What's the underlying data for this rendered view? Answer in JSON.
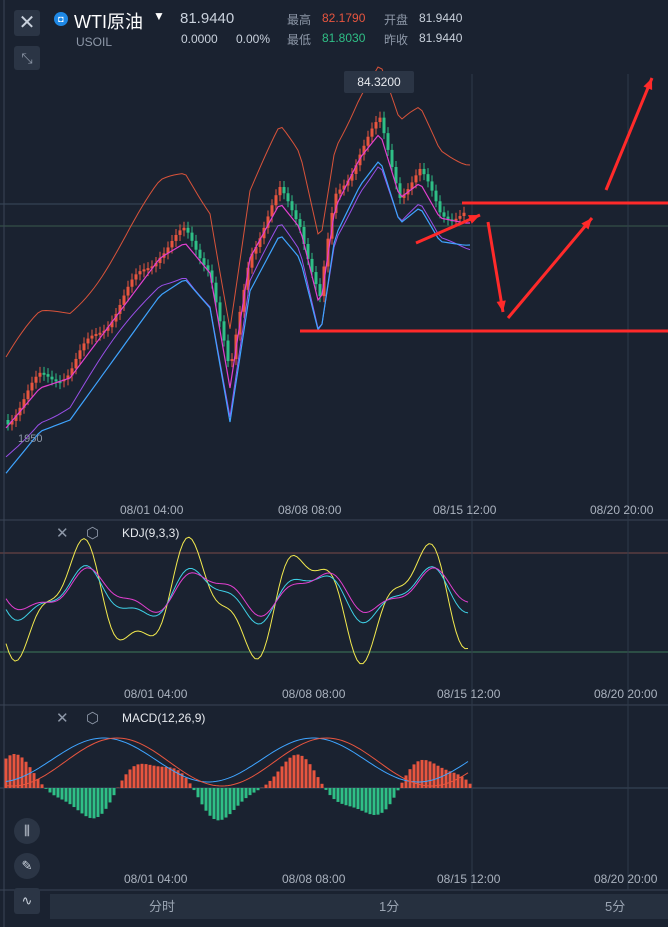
{
  "header": {
    "close_icon": "close-icon",
    "shrink_icon": "collapse-arrows-icon",
    "title": "WTI原油",
    "symbol": "USOIL",
    "price": "81.9440",
    "change": "0.0000",
    "change_pct": "0.00%",
    "high_label": "最高",
    "high_value": "82.1790",
    "low_label": "最低",
    "low_value": "81.8030",
    "open_label": "开盘",
    "open_value": "81.9440",
    "prev_label": "昨收",
    "prev_value": "81.9440"
  },
  "main_chart": {
    "high_marker": "84.3200",
    "y_axis_label": "1950",
    "x_labels": [
      "08/01 04:00",
      "08/08 08:00",
      "08/15 12:00",
      "08/20 20:00"
    ]
  },
  "kdj_panel": {
    "label": "KDJ(9,3,3)",
    "x_labels": [
      "08/01 04:00",
      "08/08 08:00",
      "08/15 12:00",
      "08/20 20:00"
    ]
  },
  "macd_panel": {
    "label": "MACD(12,26,9)",
    "x_labels": [
      "08/01 04:00",
      "08/08 08:00",
      "08/15 12:00",
      "08/20 20:00"
    ]
  },
  "toolbar": {
    "tools": [
      "candlestick-icon",
      "pencil-icon",
      "indicator-icon"
    ]
  },
  "timeframe_tabs": [
    "分时",
    "1分",
    "5分"
  ],
  "colors": {
    "up": "#e8553f",
    "down": "#2fbf86",
    "background": "#1a2230",
    "boll_outer": "#d9533a",
    "boll_mid": "#e23fd0",
    "ma": "#3fa4ff",
    "band_low": "#9a4fe8",
    "annotation": "#ff2a2a"
  }
}
